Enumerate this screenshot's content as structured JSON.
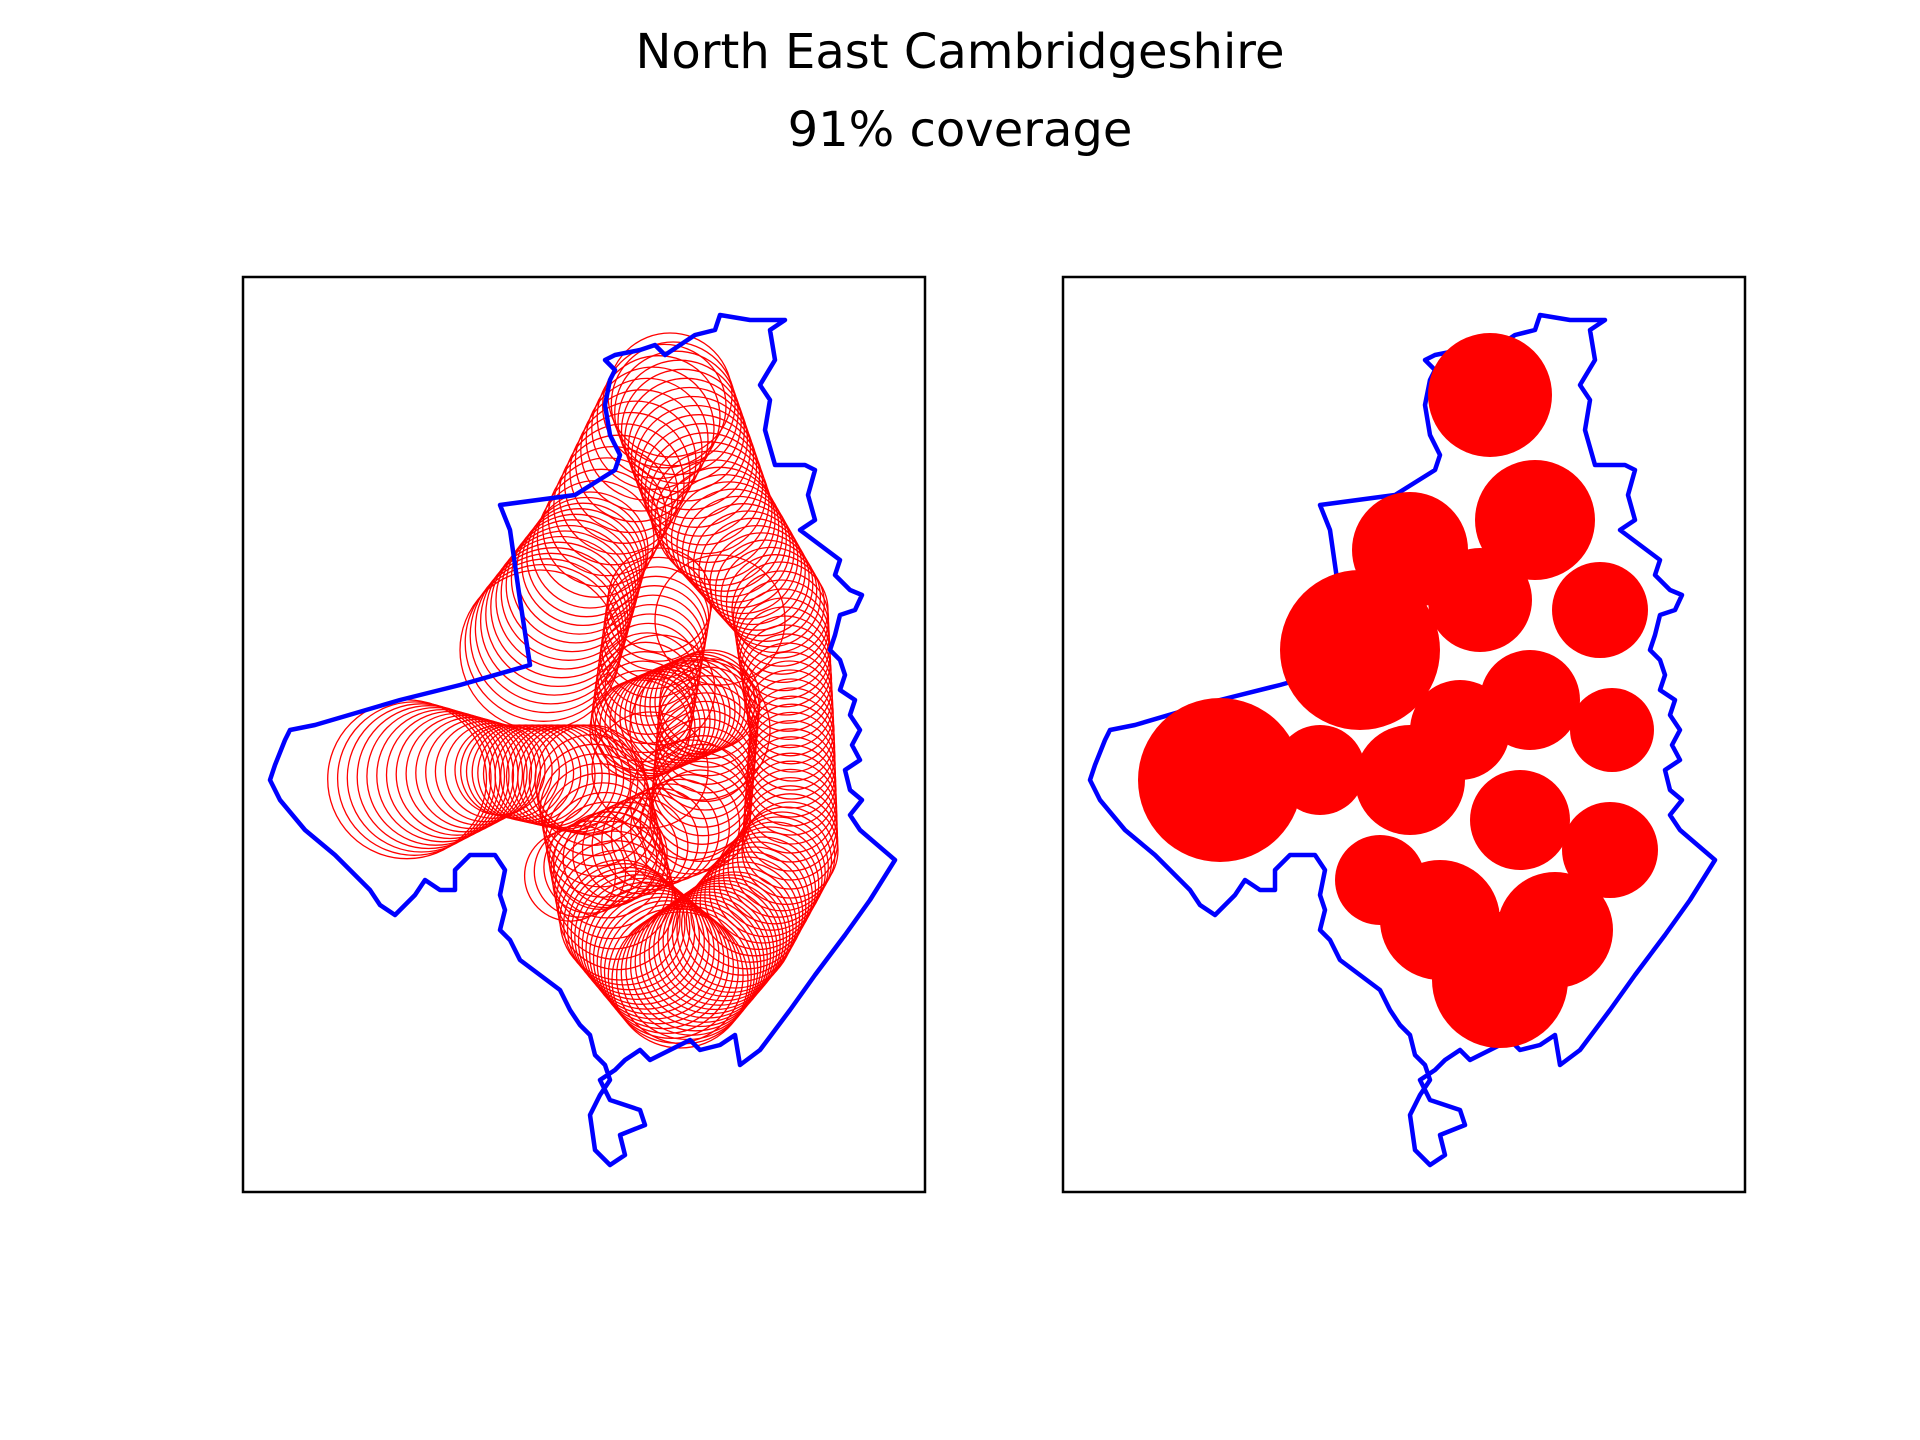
{
  "figure": {
    "title": "North East Cambridgeshire",
    "subtitle": "91% coverage"
  },
  "colors": {
    "boundary": "#0000ff",
    "coverage": "#ff0000",
    "frame": "#000000",
    "background": "#ffffff"
  },
  "panels": [
    {
      "name": "circle-outlines",
      "style": "outline"
    },
    {
      "name": "filled-coverage",
      "style": "filled"
    }
  ]
}
